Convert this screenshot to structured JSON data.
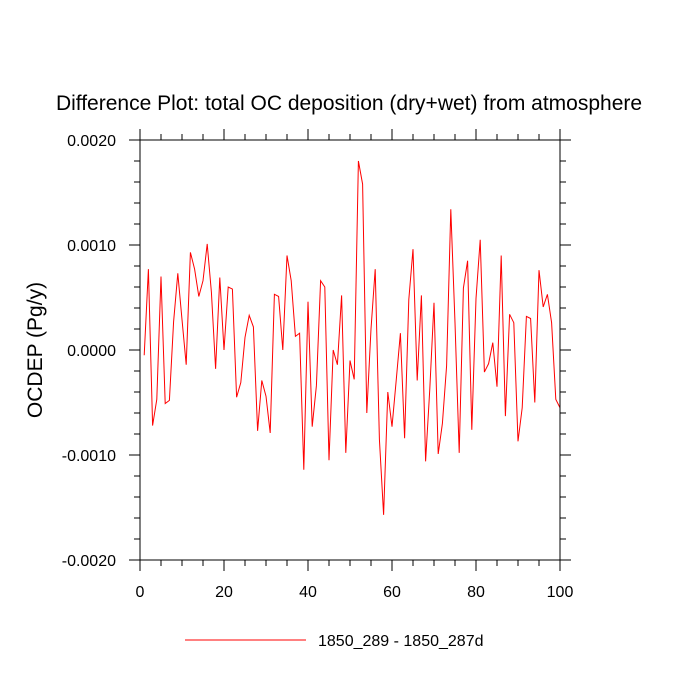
{
  "chart_data": {
    "type": "line",
    "title": "Difference Plot: total OC deposition (dry+wet) from atmosphere",
    "xlabel": "",
    "ylabel": "OCDEP  (Pg/y)",
    "xlim": [
      0,
      100
    ],
    "ylim": [
      -0.002,
      0.002
    ],
    "x_ticks": [
      0,
      20,
      40,
      60,
      80,
      100
    ],
    "x_tick_labels": [
      "0",
      "20",
      "40",
      "60",
      "80",
      "100"
    ],
    "y_ticks": [
      -0.002,
      -0.001,
      0.0,
      0.001,
      0.002
    ],
    "y_tick_labels": [
      "-0.0020",
      "-0.0010",
      "0.0000",
      "0.0010",
      "0.0020"
    ],
    "grid": false,
    "legend_position": "bottom",
    "series": [
      {
        "name": "1850_289 - 1850_287d",
        "color": "#ff0000",
        "x": [
          1,
          2,
          3,
          4,
          5,
          6,
          7,
          8,
          9,
          10,
          11,
          12,
          13,
          14,
          15,
          16,
          17,
          18,
          19,
          20,
          21,
          22,
          23,
          24,
          25,
          26,
          27,
          28,
          29,
          30,
          31,
          32,
          33,
          34,
          35,
          36,
          37,
          38,
          39,
          40,
          41,
          42,
          43,
          44,
          45,
          46,
          47,
          48,
          49,
          50,
          51,
          52,
          53,
          54,
          55,
          56,
          57,
          58,
          59,
          60,
          61,
          62,
          63,
          64,
          65,
          66,
          67,
          68,
          69,
          70,
          71,
          72,
          73,
          74,
          75,
          76,
          77,
          78,
          79,
          80,
          81,
          82,
          83,
          84,
          85,
          86,
          87,
          88,
          89,
          90,
          91,
          92,
          93,
          94,
          95,
          96,
          97,
          98,
          99,
          100
        ],
        "values": [
          -5e-05,
          0.00077,
          -0.00072,
          -0.00047,
          0.0007,
          -0.00051,
          -0.00048,
          0.00027,
          0.00073,
          0.00029,
          -0.00014,
          0.00093,
          0.00077,
          0.00051,
          0.00066,
          0.00101,
          0.00055,
          -0.00018,
          0.00069,
          0.0,
          0.0006,
          0.00058,
          -0.00045,
          -0.00031,
          0.00012,
          0.00033,
          0.00022,
          -0.00077,
          -0.00029,
          -0.00044,
          -0.00079,
          0.00053,
          0.00051,
          0.0,
          0.0009,
          0.00066,
          0.00013,
          0.00016,
          -0.00114,
          0.00046,
          -0.00073,
          -0.00034,
          0.00066,
          0.0006,
          -0.00105,
          0.0,
          -0.00014,
          0.00052,
          -0.00098,
          -0.0001,
          -0.00028,
          0.0018,
          0.00158,
          -0.0006,
          0.0002,
          0.00077,
          -0.00085,
          -0.00157,
          -0.0004,
          -0.00073,
          -0.00029,
          0.00016,
          -0.00084,
          0.00048,
          0.00096,
          -0.00029,
          0.00052,
          -0.00106,
          -0.00037,
          0.00045,
          -0.00099,
          -0.0007,
          -0.00015,
          0.00134,
          0.00026,
          -0.00098,
          0.00059,
          0.00085,
          -0.00076,
          0.00049,
          0.00105,
          -0.00021,
          -0.00013,
          7e-05,
          -0.00035,
          0.0009,
          -0.00063,
          0.00034,
          0.00026,
          -0.00087,
          -0.00055,
          0.00032,
          0.0003,
          -0.0005,
          0.00076,
          0.00041,
          0.00053,
          0.00026,
          -0.00047,
          -0.00055
        ]
      }
    ]
  }
}
